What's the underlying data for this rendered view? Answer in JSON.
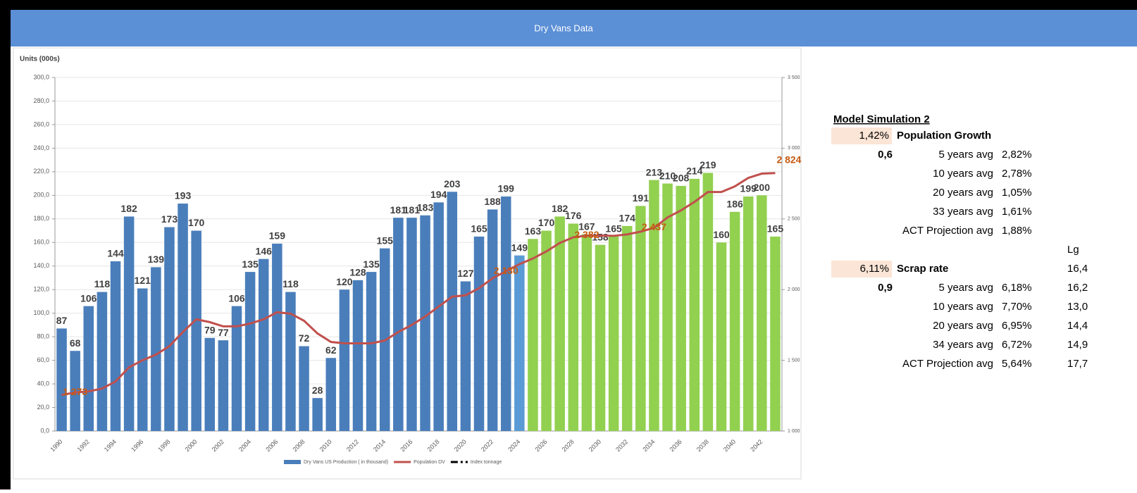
{
  "header": {
    "title": "Dry Vans Data"
  },
  "chart_data": {
    "type": "bar",
    "y_label": "Units (000s)",
    "categories": [
      "1990",
      null,
      "1992",
      null,
      "1994",
      null,
      "1996",
      null,
      "1998",
      null,
      "2000",
      null,
      "2002",
      null,
      "2004",
      null,
      "2006",
      null,
      "2008",
      null,
      "2010",
      null,
      "2012",
      null,
      "2014",
      null,
      "2016",
      null,
      "2018",
      null,
      "2020",
      null,
      "2022",
      null,
      "2024",
      null,
      "2026",
      null,
      "2028",
      null,
      "2030",
      null,
      "2032",
      null,
      "2034",
      null,
      "2036",
      null,
      "2038",
      null,
      "2040",
      null,
      "2042",
      null
    ],
    "series": [
      {
        "name": "Dry Vans US Production ( in thousand)",
        "color": "#4a7ebb",
        "values": [
          87,
          68,
          106,
          118,
          144,
          182,
          121,
          139,
          173,
          193,
          170,
          79,
          77,
          106,
          135,
          146,
          159,
          118,
          72,
          28,
          62,
          120,
          128,
          135,
          155,
          181,
          181,
          183,
          194,
          203,
          127,
          165,
          188,
          199,
          149,
          163,
          170,
          182,
          176,
          167,
          158,
          165,
          174,
          191,
          213,
          210,
          208,
          214,
          219,
          160,
          186,
          199,
          200,
          165
        ],
        "colors": [
          "#4a7ebb",
          "#4a7ebb",
          "#4a7ebb",
          "#4a7ebb",
          "#4a7ebb",
          "#4a7ebb",
          "#4a7ebb",
          "#4a7ebb",
          "#4a7ebb",
          "#4a7ebb",
          "#4a7ebb",
          "#4a7ebb",
          "#4a7ebb",
          "#4a7ebb",
          "#4a7ebb",
          "#4a7ebb",
          "#4a7ebb",
          "#4a7ebb",
          "#4a7ebb",
          "#4a7ebb",
          "#4a7ebb",
          "#4a7ebb",
          "#4a7ebb",
          "#4a7ebb",
          "#4a7ebb",
          "#4a7ebb",
          "#4a7ebb",
          "#4a7ebb",
          "#4a7ebb",
          "#4a7ebb",
          "#4a7ebb",
          "#4a7ebb",
          "#4a7ebb",
          "#4a7ebb",
          "#5b9bd5",
          "#92d050",
          "#92d050",
          "#92d050",
          "#92d050",
          "#92d050",
          "#92d050",
          "#92d050",
          "#92d050",
          "#92d050",
          "#92d050",
          "#92d050",
          "#92d050",
          "#92d050",
          "#92d050",
          "#92d050",
          "#92d050",
          "#92d050",
          "#92d050",
          "#92d050"
        ]
      },
      {
        "name": "Population DV",
        "color": "#c0504d",
        "type": "line",
        "axis": "y2",
        "values": [
          1255,
          1273,
          1280,
          1300,
          1350,
          1450,
          1500,
          1540,
          1600,
          1700,
          1790,
          1770,
          1740,
          1740,
          1760,
          1790,
          1840,
          1830,
          1780,
          1690,
          1630,
          1620,
          1620,
          1620,
          1640,
          1700,
          1750,
          1810,
          1880,
          1950,
          1960,
          2010,
          2080,
          2130,
          2180,
          2220,
          2270,
          2330,
          2370,
          2382,
          2382,
          2380,
          2390,
          2410,
          2437,
          2510,
          2560,
          2620,
          2690,
          2690,
          2730,
          2790,
          2820,
          2824
        ],
        "value_labels": [
          null,
          "1 273",
          null,
          null,
          null,
          null,
          null,
          null,
          null,
          null,
          null,
          null,
          null,
          null,
          null,
          null,
          null,
          null,
          null,
          null,
          null,
          null,
          null,
          null,
          null,
          null,
          null,
          null,
          null,
          null,
          null,
          null,
          null,
          "2 130",
          null,
          null,
          null,
          null,
          null,
          "2 382",
          null,
          null,
          null,
          null,
          "2 437",
          null,
          null,
          null,
          null,
          null,
          null,
          null,
          null,
          "2 824"
        ]
      }
    ],
    "extra_legend": [
      {
        "name": "Index tonnage",
        "color": "#000000"
      }
    ],
    "ylim": [
      0,
      300
    ],
    "yticks": [
      {
        "value": 0,
        "label": "0,0"
      },
      {
        "value": 20,
        "label": "20,0"
      },
      {
        "value": 40,
        "label": "40,0"
      },
      {
        "value": 60,
        "label": "60,0"
      },
      {
        "value": 80,
        "label": "80,0"
      },
      {
        "value": 100,
        "label": "100,0"
      },
      {
        "value": 120,
        "label": "120,0"
      },
      {
        "value": 140,
        "label": "140,0"
      },
      {
        "value": 160,
        "label": "160,0"
      },
      {
        "value": 180,
        "label": "180,0"
      },
      {
        "value": 200,
        "label": "200,0"
      },
      {
        "value": 220,
        "label": "220,0"
      },
      {
        "value": 240,
        "label": "240,0"
      },
      {
        "value": 260,
        "label": "260,0"
      },
      {
        "value": 280,
        "label": "280,0"
      },
      {
        "value": 300,
        "label": "300,0"
      }
    ],
    "y2lim": [
      1000,
      3500
    ],
    "y2ticks": [
      {
        "value": 1000,
        "label": "1 000"
      },
      {
        "value": 1500,
        "label": "1 500"
      },
      {
        "value": 2000,
        "label": "2 000"
      },
      {
        "value": 2500,
        "label": "2 500"
      },
      {
        "value": 3000,
        "label": "3 000"
      },
      {
        "value": 3500,
        "label": "3 500"
      }
    ],
    "grid": true
  },
  "panel": {
    "title": "Model Simulation 2",
    "lg_header": "Lg",
    "sections": [
      {
        "rate": "1,42%",
        "label": "Population Growth",
        "weight": "0,6",
        "rows": [
          {
            "label": "5 years avg",
            "value": "2,82%"
          },
          {
            "label": "10 years avg",
            "value": "2,78%"
          },
          {
            "label": "20 years avg",
            "value": "1,05%"
          },
          {
            "label": "33 years avg",
            "value": "1,61%"
          },
          {
            "label": "ACT Projection avg",
            "value": "1,88%"
          }
        ]
      },
      {
        "rate": "6,11%",
        "label": "Scrap rate",
        "lg": "16,4",
        "weight": "0,9",
        "rows": [
          {
            "label": "5 years avg",
            "value": "6,18%",
            "lg": "16,2"
          },
          {
            "label": "10 years avg",
            "value": "7,70%",
            "lg": "13,0"
          },
          {
            "label": "20 years avg",
            "value": "6,95%",
            "lg": "14,4"
          },
          {
            "label": "34 years avg",
            "value": "6,72%",
            "lg": "14,9"
          },
          {
            "label": "ACT Projection avg",
            "value": "5,64%",
            "lg": "17,7"
          }
        ]
      }
    ]
  }
}
